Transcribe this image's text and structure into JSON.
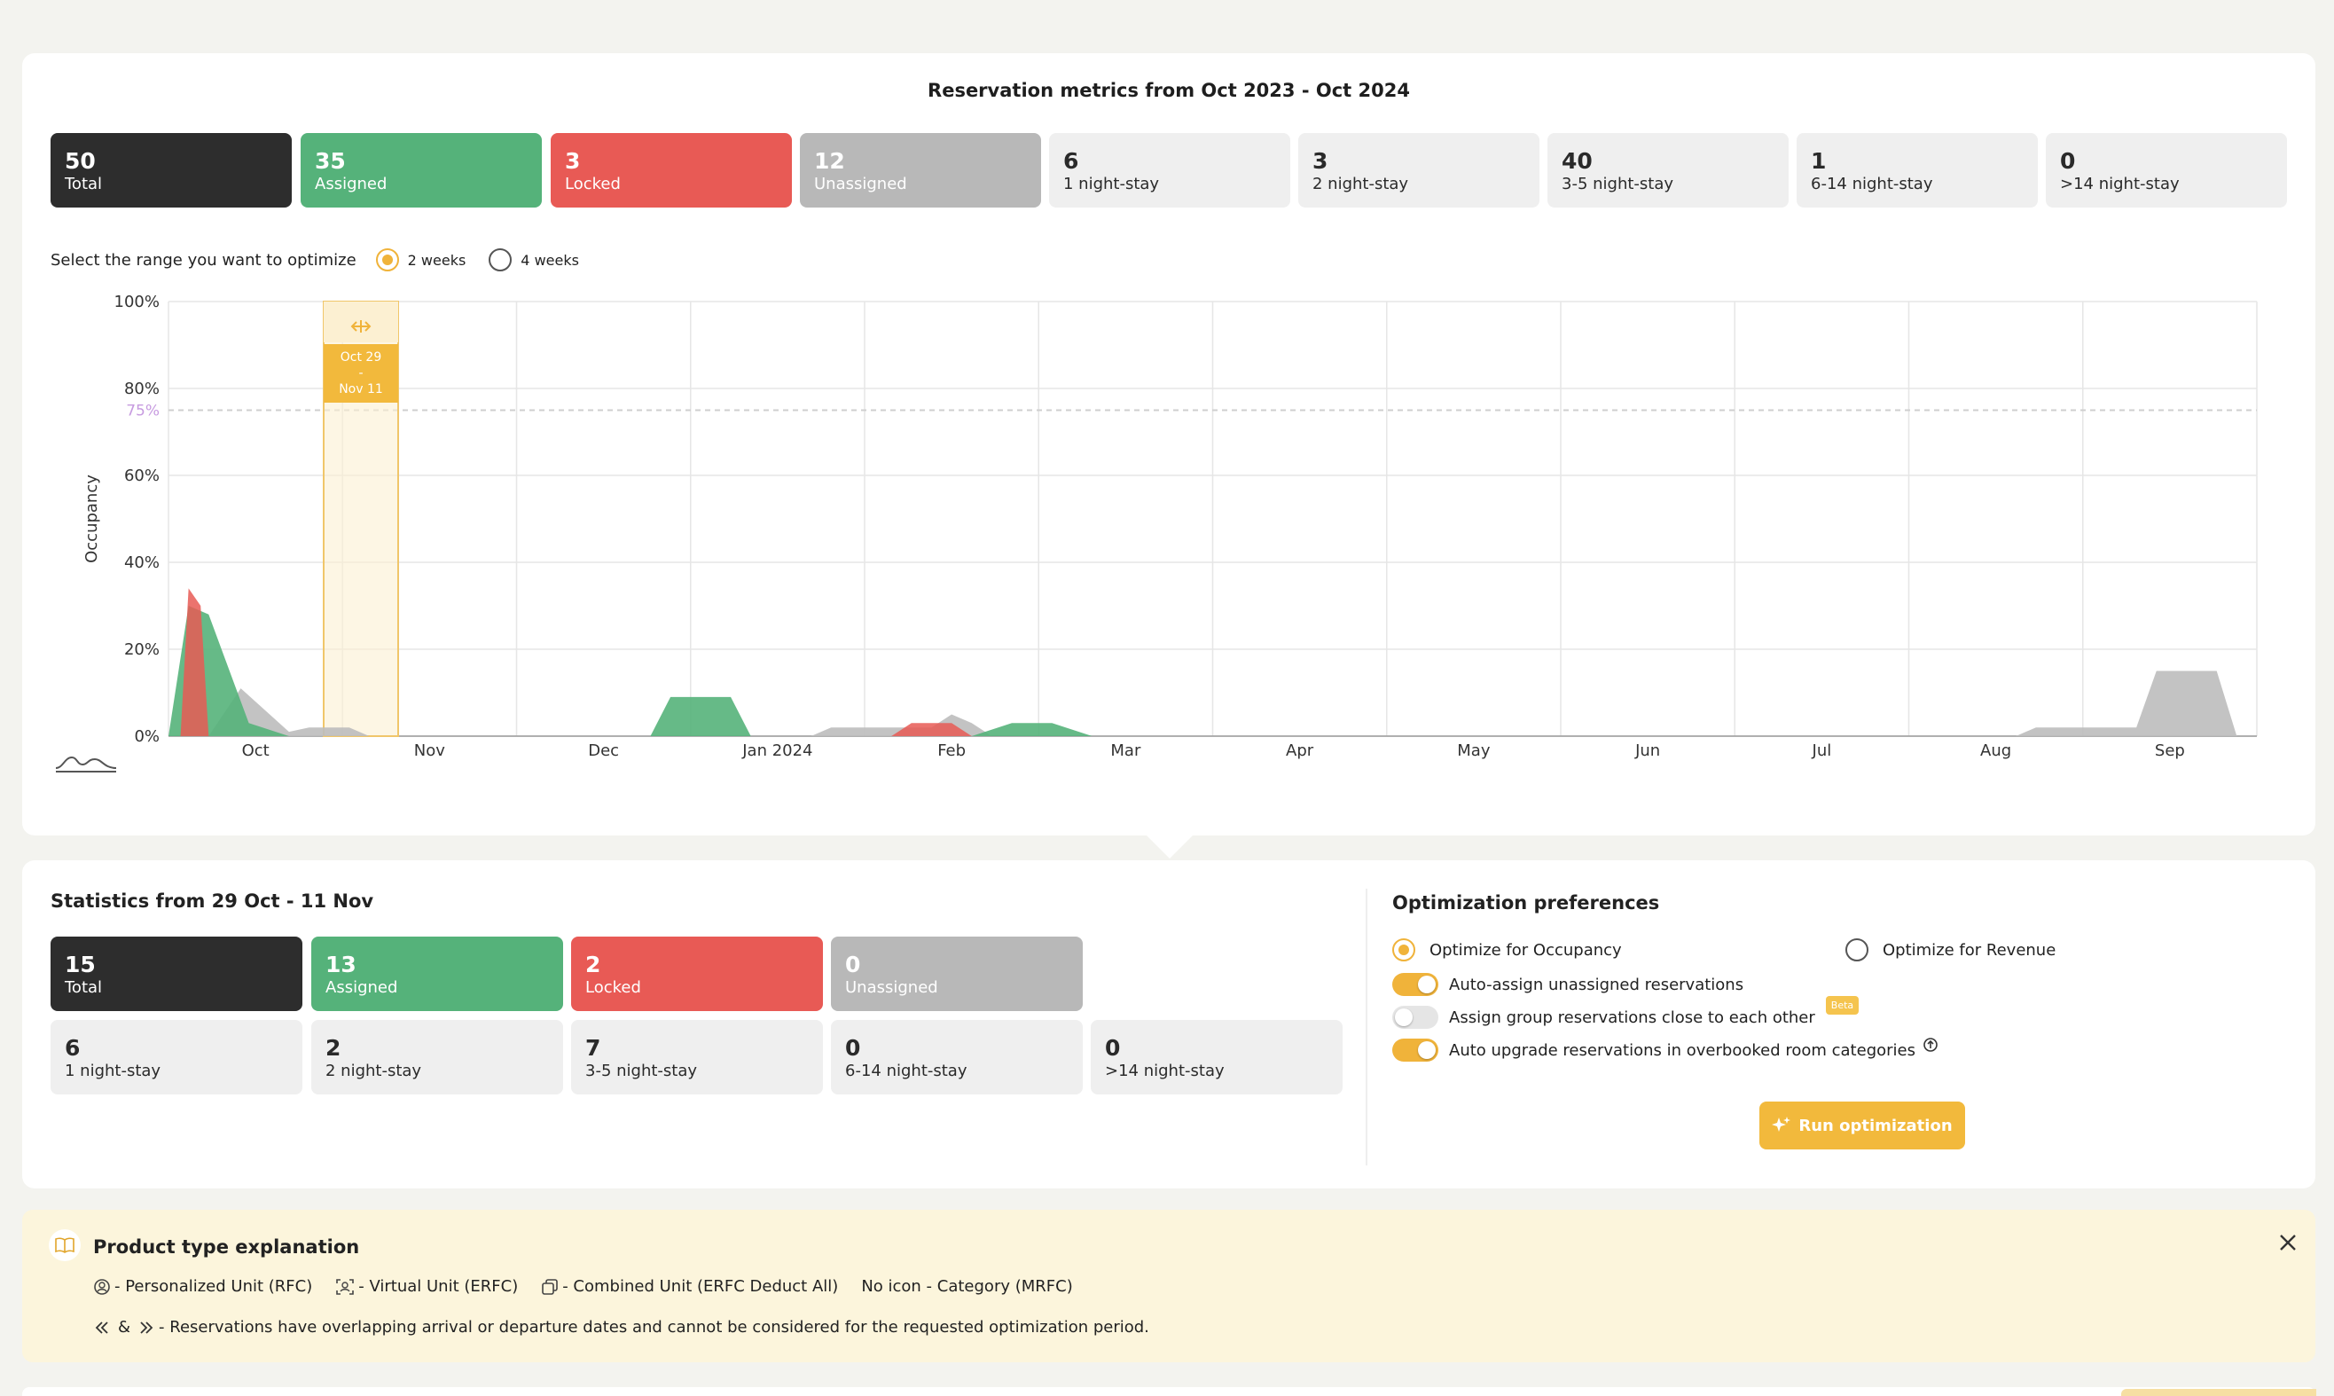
{
  "metrics": {
    "title": "Reservation metrics from Oct 2023 - Oct 2024",
    "tiles": [
      {
        "value": "50",
        "label": "Total"
      },
      {
        "value": "35",
        "label": "Assigned"
      },
      {
        "value": "3",
        "label": "Locked"
      },
      {
        "value": "12",
        "label": "Unassigned"
      },
      {
        "value": "6",
        "label": "1 night-stay"
      },
      {
        "value": "3",
        "label": "2 night-stay"
      },
      {
        "value": "40",
        "label": "3-5 night-stay"
      },
      {
        "value": "1",
        "label": "6-14 night-stay"
      },
      {
        "value": "0",
        "label": ">14 night-stay"
      }
    ]
  },
  "range": {
    "label": "Select the range you want to optimize",
    "options": [
      "2 weeks",
      "4 weeks"
    ],
    "selected": "2 weeks"
  },
  "chart_data": {
    "type": "area",
    "ylabel": "Occupancy",
    "ylim": [
      0,
      100
    ],
    "yticks": [
      "100%",
      "80%",
      "60%",
      "40%",
      "20%",
      "0%"
    ],
    "threshold": {
      "value": 75,
      "label": "75%",
      "color": "#c79be0"
    },
    "xticks": [
      "Oct",
      "Nov",
      "Dec",
      "Jan 2024",
      "Feb",
      "Mar",
      "Apr",
      "May",
      "Jun",
      "Jul",
      "Aug",
      "Sep"
    ],
    "selection": {
      "label_start": "Oct 29",
      "label_sep": "-",
      "label_end": "Nov 11"
    },
    "series": [
      {
        "name": "Assigned",
        "color": "#55b27a",
        "points": [
          [
            0,
            0
          ],
          [
            0.5,
            30
          ],
          [
            1,
            28
          ],
          [
            2,
            3
          ],
          [
            3,
            0
          ],
          [
            12,
            0
          ],
          [
            12.5,
            9
          ],
          [
            14,
            9
          ],
          [
            14.5,
            0
          ],
          [
            20,
            0
          ],
          [
            21,
            3
          ],
          [
            22,
            3
          ],
          [
            23,
            0
          ]
        ]
      },
      {
        "name": "Locked",
        "color": "#e85a55",
        "points": [
          [
            0.3,
            0
          ],
          [
            0.5,
            34
          ],
          [
            0.8,
            30
          ],
          [
            1,
            0
          ],
          [
            18,
            0
          ],
          [
            18.5,
            3
          ],
          [
            19.5,
            3
          ],
          [
            20,
            0
          ]
        ]
      },
      {
        "name": "Unassigned",
        "color": "#bdbdbd",
        "points": [
          [
            1,
            0
          ],
          [
            1.8,
            11
          ],
          [
            3,
            1
          ],
          [
            3.5,
            2
          ],
          [
            4.5,
            2
          ],
          [
            5,
            0
          ],
          [
            16,
            0
          ],
          [
            16.5,
            2
          ],
          [
            19,
            2
          ],
          [
            19.5,
            5
          ],
          [
            20,
            3
          ],
          [
            20.5,
            0
          ],
          [
            46,
            0
          ],
          [
            46.5,
            2
          ],
          [
            49,
            2
          ],
          [
            49.5,
            15
          ],
          [
            51,
            15
          ],
          [
            51.5,
            0
          ]
        ]
      }
    ]
  },
  "statistics": {
    "title": "Statistics from 29 Oct - 11 Nov",
    "tiles": [
      {
        "value": "15",
        "label": "Total"
      },
      {
        "value": "13",
        "label": "Assigned"
      },
      {
        "value": "2",
        "label": "Locked"
      },
      {
        "value": "0",
        "label": "Unassigned"
      },
      {
        "value": "6",
        "label": "1 night-stay"
      },
      {
        "value": "2",
        "label": "2 night-stay"
      },
      {
        "value": "7",
        "label": "3-5 night-stay"
      },
      {
        "value": "0",
        "label": "6-14 night-stay"
      },
      {
        "value": "0",
        "label": ">14 night-stay"
      }
    ]
  },
  "preferences": {
    "title": "Optimization preferences",
    "occupancy": "Optimize for Occupancy",
    "revenue": "Optimize for Revenue",
    "toggles": [
      {
        "label": "Auto-assign unassigned reservations",
        "on": true
      },
      {
        "label": "Assign group reservations close to each other",
        "on": false
      },
      {
        "label": "Auto upgrade reservations in overbooked room categories",
        "on": true
      }
    ],
    "beta": "Beta",
    "run_button": "Run optimization"
  },
  "explanation": {
    "title": "Product type explanation",
    "personalized": "- Personalized Unit (RFC)",
    "virtual": "- Virtual Unit (ERFC)",
    "combined": "- Combined Unit (ERFC Deduct All)",
    "category": "No icon - Category (MRFC)",
    "amp": "&",
    "overlap": "- Reservations have overlapping arrival or departure dates and cannot be considered for the requested optimization period."
  },
  "colors": {
    "accent": "#f0b33a",
    "green": "#55b27a",
    "red": "#e85a55",
    "gray": "#b8b8b8",
    "dark": "#2d2d2d"
  }
}
